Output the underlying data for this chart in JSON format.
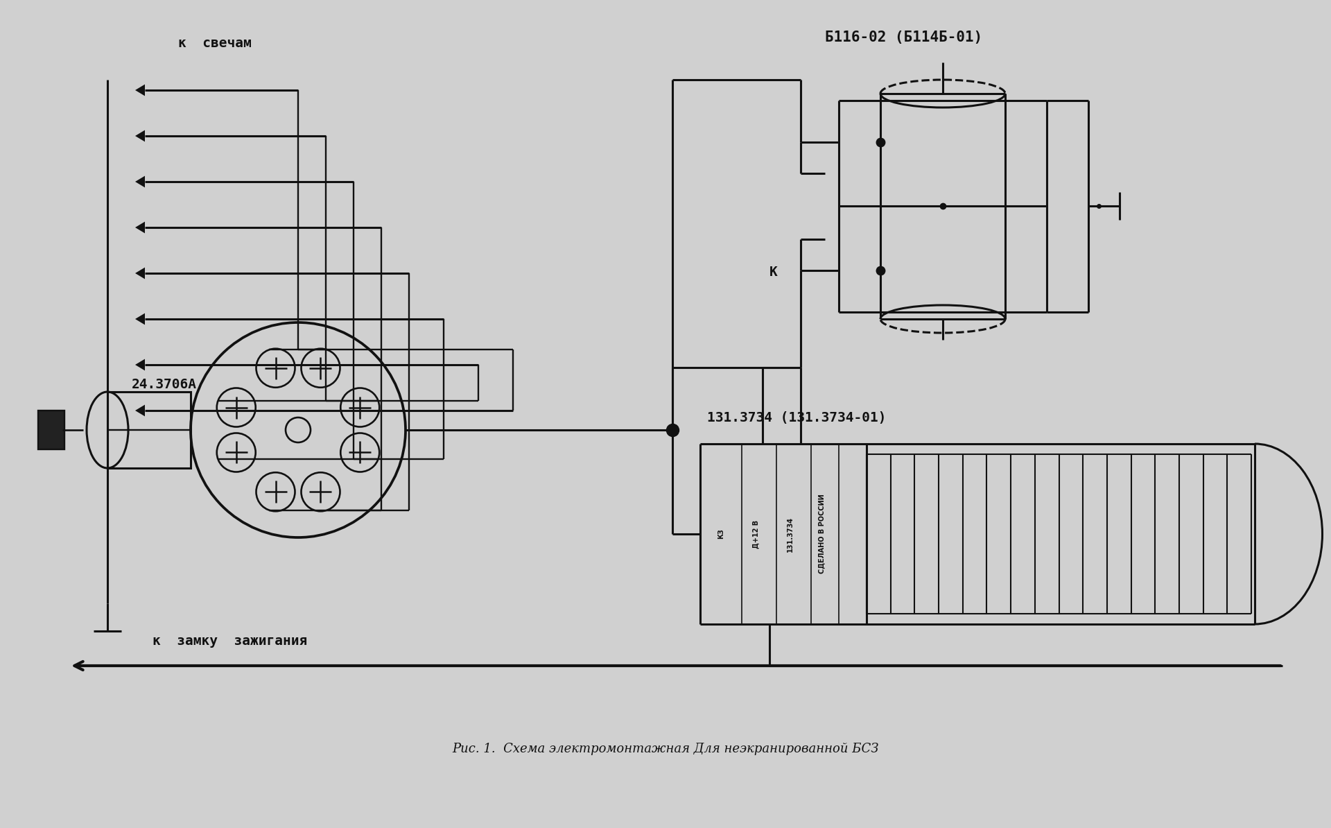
{
  "background_color": "#d0d0d0",
  "line_color": "#111111",
  "title_text": "Рис. 1.  Схема электромонтажная Для неэкранированной БСЗ",
  "label_k_svecham": "к  свечам",
  "label_k_zamku": "к  замку  зажигания",
  "label_24_3706A": "24.3706А",
  "label_B116": "Б116-02 (Б114Б-01)",
  "label_131": "131.3734 (131.3734-01)",
  "label_K": "К",
  "lw": 2.2,
  "n_spark_wires": 8,
  "title_fontsize": 13
}
